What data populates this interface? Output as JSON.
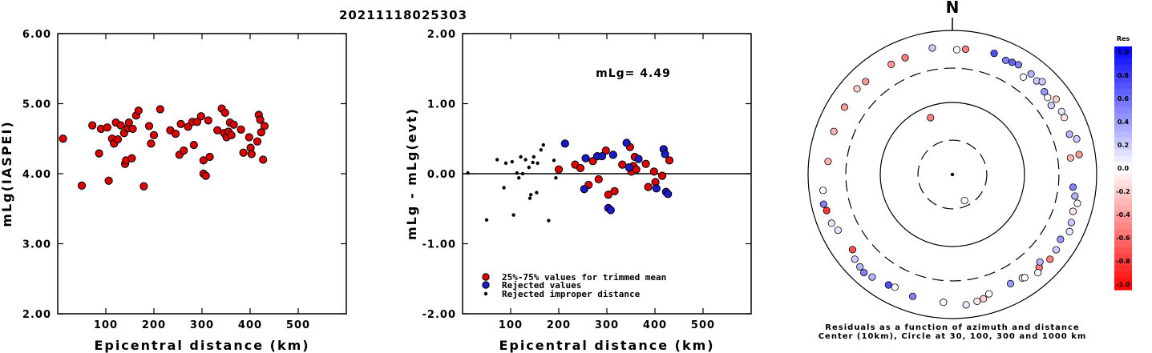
{
  "figure": {
    "title": "20211118025303"
  },
  "colors": {
    "accepted": "#dd0000",
    "rejected": "#1a1acc",
    "improper": "#000000",
    "axis": "#000000"
  },
  "chart_data": [
    {
      "type": "scatter",
      "id": "left",
      "xlabel": "Epicentral distance (km)",
      "ylabel": "mLg(IASPEI)",
      "xlim": [
        0,
        600
      ],
      "ylim": [
        2.0,
        6.0
      ],
      "xticks": [
        100,
        200,
        300,
        400,
        500
      ],
      "xtick_labels": [
        "100",
        "200",
        "300",
        "400",
        "500"
      ],
      "yticks": [
        2,
        3,
        4,
        5,
        6
      ],
      "ytick_labels": [
        "2.00",
        "3.00",
        "4.00",
        "5.00",
        "6.00"
      ],
      "points": [
        [
          11,
          4.5
        ],
        [
          50,
          3.83
        ],
        [
          72,
          4.69
        ],
        [
          86,
          4.29
        ],
        [
          90,
          4.64
        ],
        [
          103,
          4.66
        ],
        [
          106,
          3.9
        ],
        [
          113,
          4.5
        ],
        [
          117,
          4.43
        ],
        [
          121,
          4.73
        ],
        [
          125,
          4.49
        ],
        [
          131,
          4.69
        ],
        [
          138,
          4.58
        ],
        [
          140,
          4.14
        ],
        [
          142,
          4.19
        ],
        [
          146,
          4.65
        ],
        [
          148,
          4.73
        ],
        [
          154,
          4.22
        ],
        [
          156,
          4.64
        ],
        [
          163,
          4.83
        ],
        [
          168,
          4.9
        ],
        [
          179,
          3.82
        ],
        [
          190,
          4.68
        ],
        [
          194,
          4.43
        ],
        [
          200,
          4.55
        ],
        [
          213,
          4.92
        ],
        [
          234,
          4.62
        ],
        [
          245,
          4.57
        ],
        [
          253,
          4.27
        ],
        [
          256,
          4.71
        ],
        [
          262,
          4.33
        ],
        [
          271,
          4.67
        ],
        [
          280,
          4.74
        ],
        [
          283,
          4.41
        ],
        [
          290,
          4.74
        ],
        [
          298,
          4.82
        ],
        [
          303,
          4.19
        ],
        [
          303,
          4.0
        ],
        [
          308,
          3.97
        ],
        [
          313,
          4.76
        ],
        [
          316,
          4.24
        ],
        [
          332,
          4.62
        ],
        [
          341,
          4.93
        ],
        [
          346,
          4.58
        ],
        [
          348,
          4.87
        ],
        [
          351,
          4.52
        ],
        [
          355,
          4.6
        ],
        [
          358,
          4.73
        ],
        [
          361,
          4.55
        ],
        [
          366,
          4.7
        ],
        [
          381,
          4.63
        ],
        [
          386,
          4.3
        ],
        [
          398,
          4.52
        ],
        [
          401,
          4.37
        ],
        [
          403,
          4.28
        ],
        [
          415,
          4.46
        ],
        [
          418,
          4.84
        ],
        [
          421,
          4.77
        ],
        [
          423,
          4.59
        ],
        [
          427,
          4.2
        ],
        [
          430,
          4.68
        ]
      ]
    },
    {
      "type": "scatter",
      "id": "middle",
      "xlabel": "Epicentral distance (km)",
      "ylabel": "mLg - mLg(evt)",
      "xlim": [
        0,
        600
      ],
      "ylim": [
        -2.0,
        2.0
      ],
      "xticks": [
        100,
        200,
        300,
        400,
        500
      ],
      "xtick_labels": [
        "100",
        "200",
        "300",
        "400",
        "500"
      ],
      "yticks": [
        -2,
        -1,
        0,
        1,
        2
      ],
      "ytick_labels": [
        "-2.00",
        "-1.00",
        "0.00",
        "1.00",
        "2.00"
      ],
      "annotation": "mLg= 4.49",
      "reference_line": 0,
      "legend": [
        {
          "label": "25%-75% values for trimmed mean",
          "kind": "accepted"
        },
        {
          "label": "Rejected values",
          "kind": "rejected"
        },
        {
          "label": "Rejected improper distance",
          "kind": "improper"
        }
      ],
      "series": [
        {
          "kind": "improper",
          "points": [
            [
              11,
              0.01
            ],
            [
              50,
              -0.66
            ],
            [
              72,
              0.2
            ],
            [
              86,
              -0.2
            ],
            [
              90,
              0.15
            ],
            [
              103,
              0.17
            ],
            [
              106,
              -0.59
            ],
            [
              113,
              0.01
            ],
            [
              117,
              -0.06
            ],
            [
              121,
              0.24
            ],
            [
              125,
              0.0
            ],
            [
              131,
              0.2
            ],
            [
              138,
              0.09
            ],
            [
              140,
              -0.35
            ],
            [
              142,
              -0.3
            ],
            [
              146,
              0.16
            ],
            [
              148,
              0.24
            ],
            [
              154,
              -0.27
            ],
            [
              156,
              0.15
            ],
            [
              163,
              0.34
            ],
            [
              168,
              0.41
            ],
            [
              179,
              -0.67
            ],
            [
              190,
              0.19
            ],
            [
              194,
              -0.06
            ]
          ]
        },
        {
          "kind": "accepted",
          "points": [
            [
              200,
              0.06
            ],
            [
              234,
              0.13
            ],
            [
              245,
              0.08
            ],
            [
              262,
              -0.16
            ],
            [
              271,
              0.18
            ],
            [
              283,
              -0.08
            ],
            [
              298,
              0.33
            ],
            [
              303,
              -0.3
            ],
            [
              316,
              -0.25
            ],
            [
              332,
              0.13
            ],
            [
              348,
              0.38
            ],
            [
              351,
              0.03
            ],
            [
              355,
              0.11
            ],
            [
              358,
              0.24
            ],
            [
              361,
              0.06
            ],
            [
              381,
              0.14
            ],
            [
              386,
              -0.19
            ],
            [
              398,
              0.03
            ],
            [
              401,
              -0.12
            ],
            [
              415,
              -0.03
            ],
            [
              430,
              0.19
            ]
          ]
        },
        {
          "kind": "rejected",
          "points": [
            [
              213,
              0.43
            ],
            [
              253,
              -0.22
            ],
            [
              256,
              0.22
            ],
            [
              280,
              0.25
            ],
            [
              290,
              0.25
            ],
            [
              303,
              -0.49
            ],
            [
              308,
              -0.52
            ],
            [
              313,
              0.27
            ],
            [
              341,
              0.44
            ],
            [
              346,
              0.09
            ],
            [
              366,
              0.21
            ],
            [
              403,
              -0.21
            ],
            [
              418,
              0.35
            ],
            [
              421,
              0.28
            ],
            [
              423,
              -0.26
            ],
            [
              427,
              -0.29
            ]
          ]
        }
      ]
    },
    {
      "type": "scatter",
      "id": "polar",
      "subtype": "polar",
      "north_label": "N",
      "caption_line1": "Residuals as a function of azimuth and distance",
      "caption_line2": "Center (10km), Circle at 30, 100, 300 and 1000 km",
      "rings_km": [
        30,
        100,
        300,
        1000
      ],
      "ring_styles": [
        "dashed",
        "solid",
        "dashed",
        "solid"
      ],
      "colorbar": {
        "title": "Res",
        "range": [
          -1.0,
          1.0
        ],
        "tick_labels": [
          "1.0",
          "0.8",
          "0.6",
          "0.4",
          "0.2",
          "0.0",
          "-0.2",
          "-0.4",
          "-0.6",
          "-0.8",
          "-1.0"
        ]
      },
      "points_az_dist_res": [
        [
          339,
          70,
          -0.5
        ],
        [
          155,
          25,
          0.0
        ],
        [
          6,
          560,
          -0.5
        ],
        [
          19,
          600,
          0.7
        ],
        [
          25,
          560,
          0.5
        ],
        [
          28,
          580,
          0.6
        ],
        [
          31,
          600,
          0.5
        ],
        [
          38,
          590,
          0.3
        ],
        [
          42,
          560,
          0.2
        ],
        [
          48,
          520,
          0.4
        ],
        [
          51,
          500,
          0.0
        ],
        [
          54,
          600,
          -0.2
        ],
        [
          60,
          560,
          0.1
        ],
        [
          63,
          550,
          -0.1
        ],
        [
          71,
          520,
          0.3
        ],
        [
          74,
          620,
          0.2
        ],
        [
          81,
          600,
          -0.4
        ],
        [
          96,
          480,
          0.5
        ],
        [
          103,
          600,
          0.0
        ],
        [
          107,
          560,
          -0.1
        ],
        [
          112,
          600,
          0.2
        ],
        [
          116,
          640,
          0.1
        ],
        [
          121,
          560,
          0.4
        ],
        [
          126,
          600,
          0.2
        ],
        [
          131,
          620,
          -0.5
        ],
        [
          137,
          580,
          -0.5
        ],
        [
          139,
          640,
          0.0
        ],
        [
          146,
          540,
          0.1
        ],
        [
          152,
          520,
          0.4
        ],
        [
          163,
          540,
          0.0
        ],
        [
          166,
          600,
          -0.2
        ],
        [
          169,
          620,
          -0.1
        ],
        [
          174,
          660,
          0.1
        ],
        [
          184,
          600,
          0.0
        ],
        [
          198,
          600,
          0.5
        ],
        [
          207,
          570,
          0.0
        ],
        [
          210,
          590,
          0.7
        ],
        [
          218,
          640,
          0.3
        ],
        [
          222,
          680,
          0.5
        ],
        [
          225,
          650,
          0.3
        ],
        [
          229,
          620,
          0.2
        ],
        [
          233,
          540,
          -0.7
        ],
        [
          244,
          580,
          0.1
        ],
        [
          248,
          640,
          0.1
        ],
        [
          254,
          650,
          -0.8
        ],
        [
          257,
          680,
          0.5
        ],
        [
          263,
          640,
          0.0
        ],
        [
          276,
          540,
          -0.3
        ],
        [
          290,
          560,
          -0.3
        ],
        [
          302,
          580,
          -0.4
        ],
        [
          312,
          600,
          -0.2
        ],
        [
          317,
          580,
          -0.4
        ],
        [
          331,
          560,
          -0.4
        ],
        [
          338,
          560,
          -0.5
        ],
        [
          351,
          600,
          0.2
        ],
        [
          2,
          540,
          0.0
        ],
        [
          36,
          470,
          0.0
        ],
        [
          100,
          530,
          0.3
        ],
        [
          55,
          470,
          0.2
        ],
        [
          82,
          450,
          -0.3
        ],
        [
          44,
          620,
          0.2
        ],
        [
          135,
          520,
          0.3
        ],
        [
          145,
          560,
          0.0
        ]
      ]
    }
  ]
}
